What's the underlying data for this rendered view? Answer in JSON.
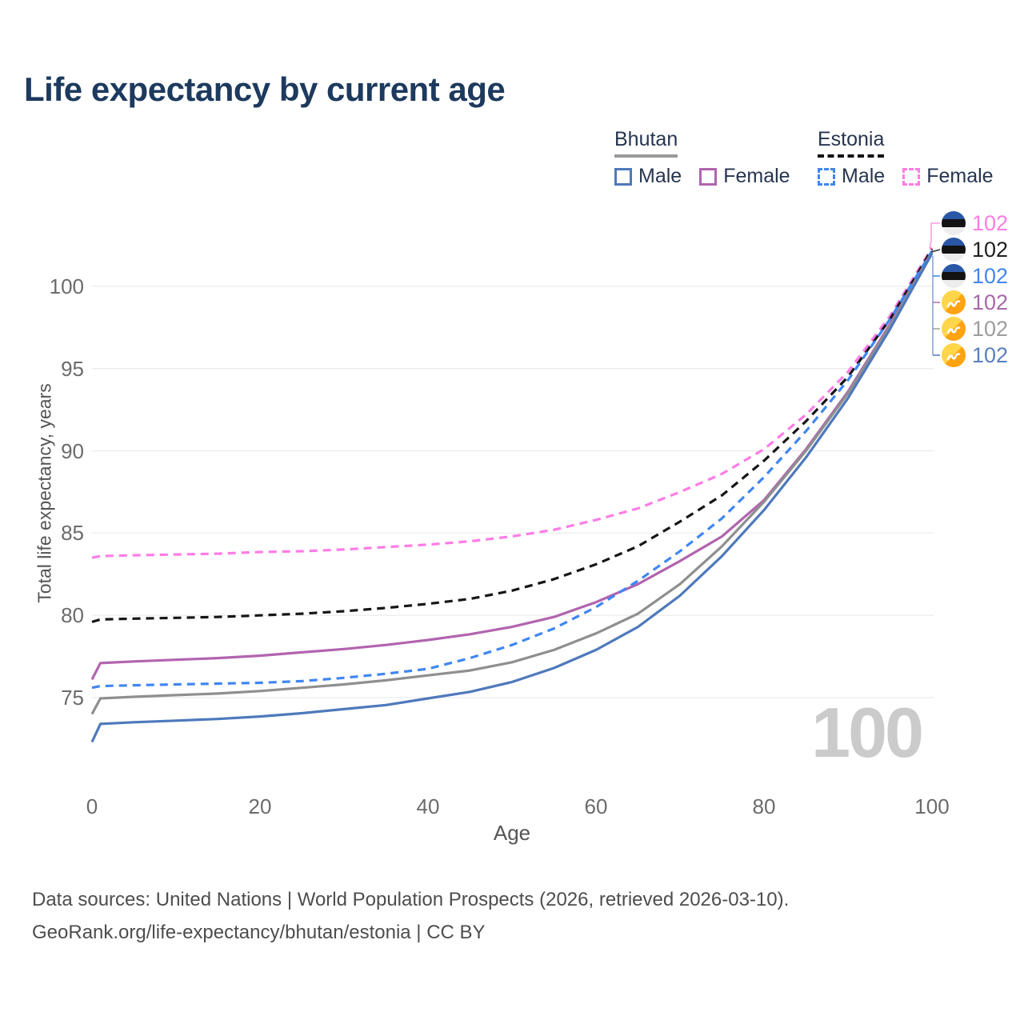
{
  "title": "Life expectancy by current age",
  "legend": {
    "groups": [
      {
        "name": "Bhutan",
        "line_style": "solid",
        "underline_color": "#9a9a9a",
        "items": [
          {
            "label": "Male",
            "color": "#4e79bb"
          },
          {
            "label": "Female",
            "color": "#b264af"
          }
        ]
      },
      {
        "name": "Estonia",
        "line_style": "dashed",
        "underline_color": "#141414",
        "items": [
          {
            "label": "Male",
            "color": "#3f86f2"
          },
          {
            "label": "Female",
            "color": "#ff7ce6"
          }
        ]
      }
    ]
  },
  "footer": {
    "line1": "Data sources: United Nations | World Population Prospects (2026, retrieved 2026-03-10).",
    "line2": "GeoRank.org/life-expectancy/bhutan/estonia | CC BY"
  },
  "chart_data": {
    "type": "line",
    "title": "Life expectancy by current age",
    "xlabel": "Age",
    "ylabel": "Total life expectancy, years",
    "current_age_label": "100",
    "xlim": [
      0,
      100
    ],
    "ylim": [
      72,
      103.5
    ],
    "x_ticks": [
      0,
      20,
      40,
      60,
      80,
      100
    ],
    "y_ticks": [
      75,
      80,
      85,
      90,
      95,
      100
    ],
    "grid": "horizontal",
    "legend_position": "top-right",
    "x": [
      0,
      1,
      5,
      10,
      15,
      20,
      25,
      30,
      35,
      40,
      45,
      50,
      55,
      60,
      65,
      70,
      75,
      80,
      85,
      90,
      95,
      100
    ],
    "series": [
      {
        "id": "estonia-female",
        "name": "Estonia Female",
        "color": "#ff7ce6",
        "dashed": true,
        "values": [
          83.5,
          83.6,
          83.65,
          83.7,
          83.75,
          83.85,
          83.9,
          84.0,
          84.15,
          84.3,
          84.5,
          84.8,
          85.2,
          85.8,
          86.5,
          87.5,
          88.6,
          90.1,
          92.2,
          94.8,
          98.2,
          102.35
        ]
      },
      {
        "id": "estonia-total",
        "name": "Estonia",
        "color": "#161616",
        "dashed": true,
        "values": [
          79.6,
          79.75,
          79.8,
          79.85,
          79.9,
          80.0,
          80.1,
          80.25,
          80.45,
          80.7,
          81.0,
          81.5,
          82.2,
          83.1,
          84.2,
          85.7,
          87.3,
          89.4,
          91.8,
          94.5,
          98.0,
          102.25
        ]
      },
      {
        "id": "bhutan-female",
        "name": "Bhutan Female",
        "color": "#b264af",
        "dashed": false,
        "values": [
          76.1,
          77.1,
          77.2,
          77.3,
          77.4,
          77.55,
          77.75,
          77.95,
          78.2,
          78.5,
          78.85,
          79.3,
          79.9,
          80.8,
          81.9,
          83.3,
          84.8,
          87.0,
          90.1,
          93.6,
          97.7,
          102.1
        ]
      },
      {
        "id": "bhutan-total",
        "name": "Bhutan",
        "color": "#8f8f8f",
        "dashed": false,
        "values": [
          74.0,
          74.95,
          75.05,
          75.15,
          75.25,
          75.4,
          75.6,
          75.8,
          76.05,
          76.35,
          76.65,
          77.15,
          77.9,
          78.9,
          80.1,
          81.9,
          84.2,
          86.9,
          90.0,
          93.5,
          97.6,
          102.05
        ]
      },
      {
        "id": "estonia-male",
        "name": "Estonia Male",
        "color": "#3f86f2",
        "dashed": true,
        "values": [
          75.6,
          75.7,
          75.75,
          75.8,
          75.85,
          75.9,
          76.0,
          76.2,
          76.45,
          76.75,
          77.4,
          78.2,
          79.2,
          80.5,
          82.1,
          83.9,
          85.9,
          88.4,
          91.2,
          94.3,
          98.0,
          102.15
        ]
      },
      {
        "id": "bhutan-male",
        "name": "Bhutan Male",
        "color": "#4e79bb",
        "dashed": false,
        "values": [
          72.3,
          73.4,
          73.5,
          73.6,
          73.7,
          73.85,
          74.05,
          74.3,
          74.55,
          74.95,
          75.35,
          75.95,
          76.8,
          77.9,
          79.3,
          81.2,
          83.6,
          86.4,
          89.6,
          93.2,
          97.4,
          102.0
        ]
      }
    ],
    "end_labels": [
      {
        "series": "estonia-female",
        "flag": "estonia",
        "value": "102",
        "color": "#ff7ce6"
      },
      {
        "series": "estonia-total",
        "flag": "estonia",
        "value": "102",
        "color": "#1f1f1f"
      },
      {
        "series": "estonia-male",
        "flag": "estonia",
        "value": "102",
        "color": "#4187f0"
      },
      {
        "series": "bhutan-female",
        "flag": "bhutan",
        "value": "102",
        "color": "#a868aa"
      },
      {
        "series": "bhutan-total",
        "flag": "bhutan",
        "value": "102",
        "color": "#9d9d9d"
      },
      {
        "series": "bhutan-male",
        "flag": "bhutan",
        "value": "102",
        "color": "#5b7fc0"
      }
    ]
  }
}
